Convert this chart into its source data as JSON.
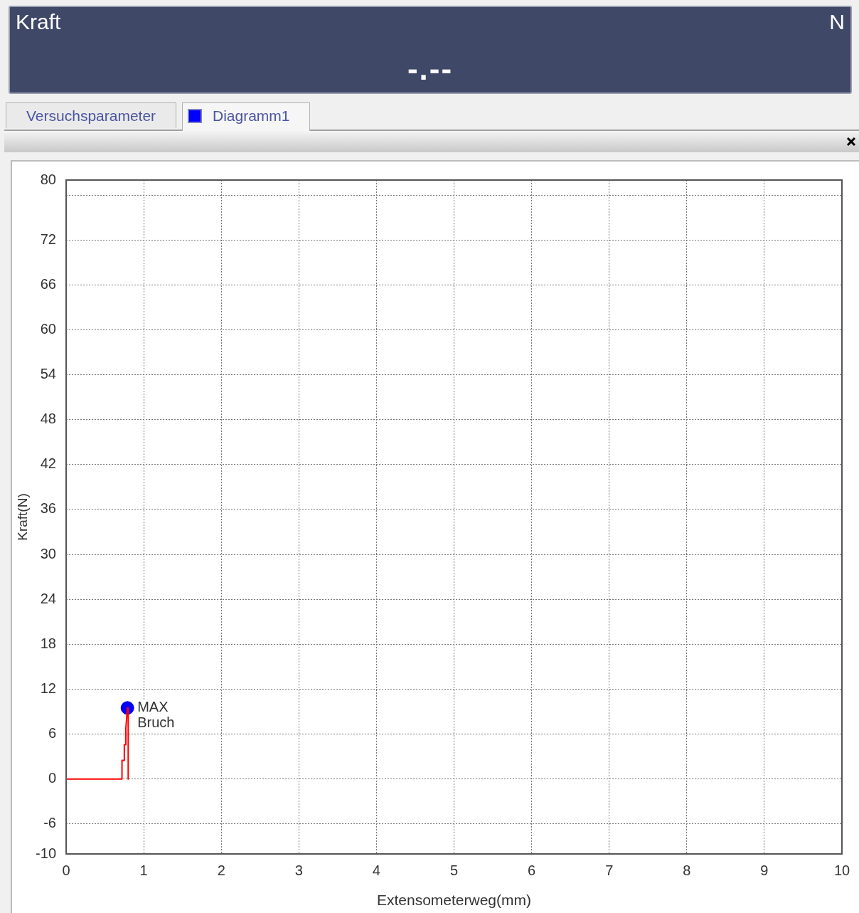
{
  "chart_data": {
    "type": "line",
    "xlabel": "Extensometerweg(mm)",
    "ylabel": "Kraft(N)",
    "annotations": [
      "Kraft",
      "N",
      "-.--",
      "Versuchsparameter",
      "Diagramm1",
      {
        "text": "MAX",
        "x": 0.79,
        "y": 9.5
      },
      {
        "text": "Bruch",
        "x": 0.79,
        "y": 9.5
      }
    ],
    "xlim": [
      0,
      10
    ],
    "xticks": [
      0,
      1,
      2,
      3,
      4,
      5,
      6,
      7,
      8,
      9,
      10
    ],
    "ylim": [
      -10,
      80
    ],
    "yticks": [
      -10,
      -6,
      0,
      6,
      12,
      18,
      24,
      30,
      36,
      42,
      48,
      54,
      60,
      66,
      72,
      {
        "value": 78,
        "label": null
      },
      80
    ],
    "grid": true,
    "legend": false,
    "line_style": "solid",
    "series": [
      {
        "color": "#ff0000",
        "marker": "none",
        "x": [
          0,
          0.7,
          0.72,
          0.72,
          0.75,
          0.75,
          0.77,
          0.77,
          0.79,
          0.8,
          0.8
        ],
        "values": [
          0,
          0,
          0,
          2.5,
          2.5,
          4.6,
          4.6,
          6.8,
          9.5,
          9.5,
          0
        ]
      },
      {
        "type": "scatter",
        "color": "#0000ff",
        "marker": "circle",
        "x": [
          0.79
        ],
        "values": [
          9.5
        ]
      }
    ]
  }
}
